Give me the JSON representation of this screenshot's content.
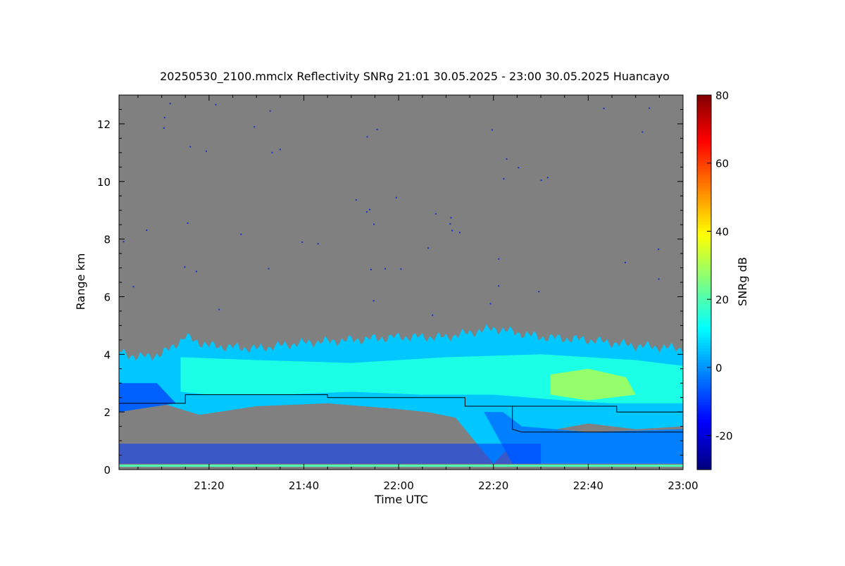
{
  "chart_data": {
    "type": "heatmap",
    "title": "20250530_2100.mmclx Reflectivity SNRg   21:01 30.05.2025 - 23:00 30.05.2025 Huancayo",
    "xlabel": "Time UTC",
    "ylabel": "Range km",
    "colorbar_label": "SNRg dB",
    "x_start": "21:01",
    "x_end": "23:00",
    "xlim_minutes_after_2100": [
      1,
      120
    ],
    "ylim": [
      0,
      13
    ],
    "x_ticks": [
      {
        "label": "21:20",
        "minute": 20
      },
      {
        "label": "21:40",
        "minute": 40
      },
      {
        "label": "22:00",
        "minute": 60
      },
      {
        "label": "22:20",
        "minute": 80
      },
      {
        "label": "22:40",
        "minute": 100
      },
      {
        "label": "23:00",
        "minute": 120
      }
    ],
    "y_ticks": [
      {
        "label": "0",
        "value": 0
      },
      {
        "label": "2",
        "value": 2
      },
      {
        "label": "4",
        "value": 4
      },
      {
        "label": "6",
        "value": 6
      },
      {
        "label": "8",
        "value": 8
      },
      {
        "label": "10",
        "value": 10
      },
      {
        "label": "12",
        "value": 12
      }
    ],
    "colorbar": {
      "range": [
        -30,
        80
      ],
      "ticks": [
        {
          "label": "-20",
          "value": -20
        },
        {
          "label": "0",
          "value": 0
        },
        {
          "label": "20",
          "value": 20
        },
        {
          "label": "40",
          "value": 40
        },
        {
          "label": "60",
          "value": 60
        },
        {
          "label": "80",
          "value": 80
        }
      ],
      "colormap": "jet"
    },
    "no_signal_color": "#808080",
    "cloud_top_km": [
      {
        "t": "21:01",
        "v": 4.1
      },
      {
        "t": "21:05",
        "v": 3.9
      },
      {
        "t": "21:10",
        "v": 4.0
      },
      {
        "t": "21:15",
        "v": 4.6
      },
      {
        "t": "21:20",
        "v": 4.3
      },
      {
        "t": "21:30",
        "v": 4.2
      },
      {
        "t": "21:40",
        "v": 4.4
      },
      {
        "t": "21:50",
        "v": 4.5
      },
      {
        "t": "22:00",
        "v": 4.6
      },
      {
        "t": "22:10",
        "v": 4.6
      },
      {
        "t": "22:20",
        "v": 4.9
      },
      {
        "t": "22:30",
        "v": 4.6
      },
      {
        "t": "22:40",
        "v": 4.5
      },
      {
        "t": "22:50",
        "v": 4.3
      },
      {
        "t": "23:00",
        "v": 4.2
      }
    ],
    "cloud_base_line_km": [
      {
        "t": "21:01",
        "v": 2.3
      },
      {
        "t": "21:15",
        "v": 2.3
      },
      {
        "t": "21:15",
        "v": 2.6
      },
      {
        "t": "21:45",
        "v": 2.6
      },
      {
        "t": "21:45",
        "v": 2.5
      },
      {
        "t": "22:14",
        "v": 2.5
      },
      {
        "t": "22:14",
        "v": 2.2
      },
      {
        "t": "22:24",
        "v": 2.2
      },
      {
        "t": "22:24",
        "v": 1.4
      },
      {
        "t": "22:26",
        "v": 1.3
      },
      {
        "t": "22:46",
        "v": 1.3
      },
      {
        "t": "23:00",
        "v": 1.3
      }
    ],
    "upper_layer_line_km": [
      {
        "t": "22:24",
        "v": 2.2
      },
      {
        "t": "22:46",
        "v": 2.2
      },
      {
        "t": "22:46",
        "v": 2.0
      },
      {
        "t": "23:00",
        "v": 2.0
      }
    ]
  }
}
